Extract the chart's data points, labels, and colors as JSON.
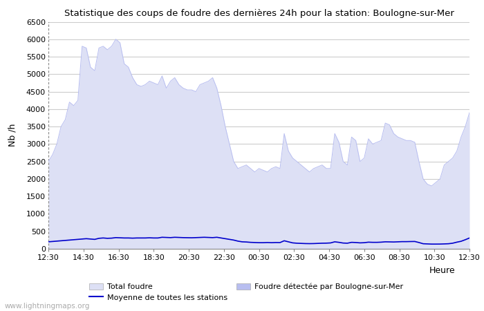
{
  "title": "Statistique des coups de foudre des dernières 24h pour la station: Boulogne-sur-Mer",
  "ylabel": "Nb /h",
  "xlabel": "Heure",
  "ylim": [
    0,
    6500
  ],
  "yticks": [
    0,
    500,
    1000,
    1500,
    2000,
    2500,
    3000,
    3500,
    4000,
    4500,
    5000,
    5500,
    6000,
    6500
  ],
  "xtick_labels": [
    "12:30",
    "14:30",
    "16:30",
    "18:30",
    "20:30",
    "22:30",
    "00:30",
    "02:30",
    "04:30",
    "06:30",
    "08:30",
    "10:30",
    "12:30"
  ],
  "background_color": "#ffffff",
  "plot_bg_color": "#ffffff",
  "grid_color": "#cccccc",
  "fill_total_color": "#dde0f5",
  "fill_local_color": "#b8bef0",
  "line_color": "#0000cc",
  "watermark": "www.lightningmaps.org",
  "total_foudre": [
    2500,
    2700,
    3000,
    3500,
    3700,
    4200,
    4100,
    4250,
    5800,
    5750,
    5200,
    5100,
    5750,
    5800,
    5700,
    5800,
    6000,
    5900,
    5300,
    5200,
    4900,
    4700,
    4650,
    4700,
    4800,
    4750,
    4700,
    4950,
    4600,
    4800,
    4900,
    4700,
    4600,
    4550,
    4550,
    4500,
    4700,
    4750,
    4800,
    4900,
    4600,
    4100,
    3500,
    3000,
    2500,
    2300,
    2350,
    2400,
    2300,
    2200,
    2300,
    2250,
    2200,
    2300,
    2350,
    2300,
    3300,
    2800,
    2600,
    2500,
    2400,
    2300,
    2200,
    2300,
    2350,
    2400,
    2300,
    2300,
    3300,
    3050,
    2500,
    2400,
    3200,
    3100,
    2500,
    2600,
    3150,
    3000,
    3050,
    3100,
    3600,
    3550,
    3300,
    3200,
    3150,
    3100,
    3100,
    3050,
    2500,
    2000,
    1850,
    1800,
    1900,
    2000,
    2400,
    2500,
    2600,
    2800,
    3200,
    3500,
    3900
  ],
  "moyenne": [
    200,
    210,
    220,
    230,
    240,
    250,
    260,
    270,
    280,
    290,
    280,
    270,
    300,
    310,
    300,
    305,
    320,
    315,
    310,
    310,
    305,
    310,
    310,
    310,
    315,
    310,
    310,
    330,
    325,
    320,
    330,
    325,
    320,
    318,
    316,
    320,
    325,
    330,
    325,
    320,
    330,
    310,
    290,
    270,
    250,
    220,
    200,
    195,
    185,
    180,
    175,
    175,
    180,
    175,
    180,
    178,
    230,
    200,
    170,
    160,
    155,
    150,
    148,
    150,
    155,
    160,
    162,
    168,
    200,
    185,
    165,
    160,
    185,
    180,
    170,
    175,
    190,
    185,
    185,
    190,
    200,
    198,
    195,
    200,
    205,
    205,
    208,
    210,
    180,
    145,
    140,
    135,
    135,
    136,
    140,
    145,
    160,
    190,
    215,
    260,
    310
  ]
}
